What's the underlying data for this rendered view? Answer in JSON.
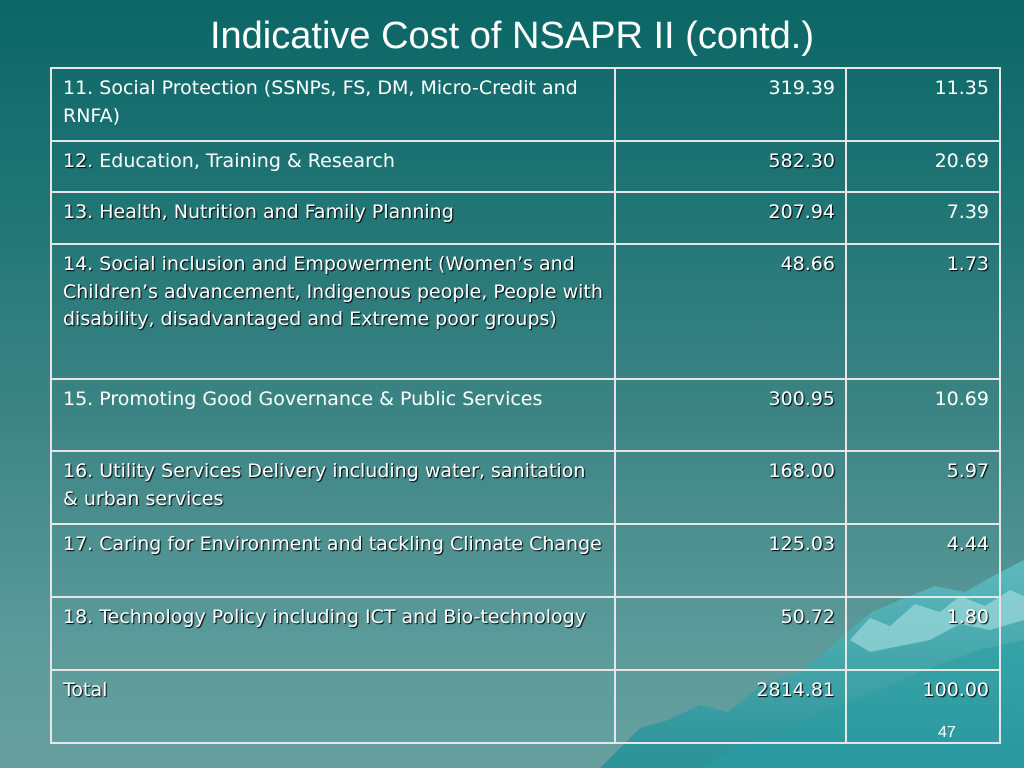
{
  "title": "Indicative Cost of NSAPR II (contd.)",
  "rows": [
    {
      "label": "11. Social Protection (SSNPs, FS, DM, Micro-Credit and RNFA)",
      "amount": "319.39",
      "percent": "11.35"
    },
    {
      "label_prefix": "12.",
      "label_rest": " Education, Training & Research",
      "amount": "582.30",
      "percent": "20.69"
    },
    {
      "label": "13. Health, Nutrition and Family Planning",
      "amount": "207.94",
      "percent": "7.39"
    },
    {
      "label": "14. Social inclusion and Empowerment (Women’s and Children’s advancement, Indigenous people, People with disability, disadvantaged and Extreme poor groups)",
      "amount": "48.66",
      "percent": "1.73"
    },
    {
      "label": "15. Promoting Good Governance & Public Services",
      "amount": "300.95",
      "percent": "10.69"
    },
    {
      "label": "16. Utility Services Delivery including water, sanitation & urban services",
      "amount": "168.00",
      "percent": "5.97"
    },
    {
      "label": "17. Caring for Environment and tackling Climate Change",
      "amount": "125.03",
      "percent": "4.44"
    },
    {
      "label": "18. Technology Policy including ICT and Bio-technology",
      "amount": "50.72",
      "percent": "1.80"
    },
    {
      "label": "Total",
      "amount": "2814.81",
      "percent": "100.00"
    }
  ],
  "page_number": "47",
  "colors": {
    "background_top": "#0c6666",
    "background_bottom": "#679f9f",
    "border": "#e6e6e6",
    "text": "#ffffff"
  }
}
